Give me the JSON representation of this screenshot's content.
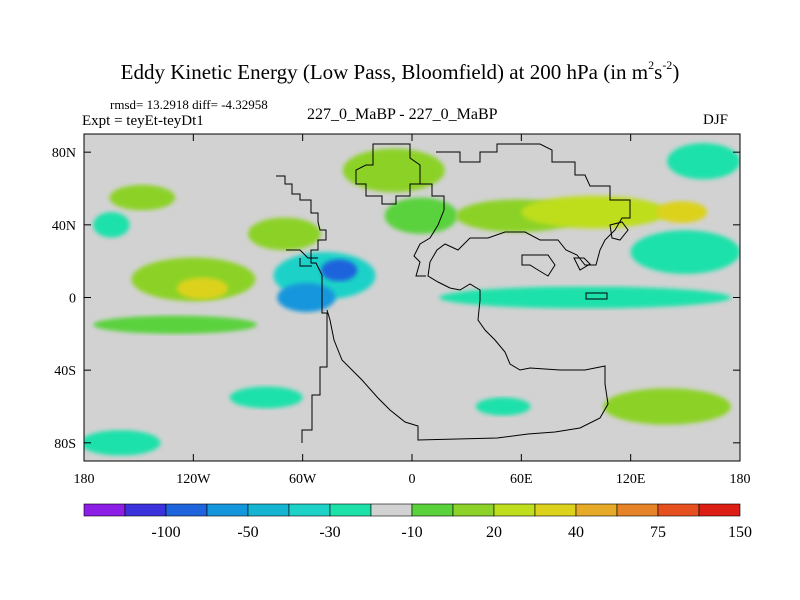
{
  "title": {
    "main": "Eddy Kinetic Energy (Low Pass, Bloomfield) at 200 hPa (in m",
    "sup1": "2",
    "mid": "s",
    "sup2": "-2",
    "close": ")"
  },
  "stats": "rmsd= 13.2918 diff= -4.32958",
  "expt": "Expt = teyEt-teyDt1",
  "runs": "227_0_MaBP - 227_0_MaBP",
  "season": "DJF",
  "chart_data": {
    "type": "heatmap",
    "title": "Eddy Kinetic Energy (Low Pass, Bloomfield) at 200 hPa (in m^2 s^-2)",
    "xlabel": "",
    "ylabel": "",
    "xlim": [
      -180,
      180
    ],
    "ylim": [
      -90,
      90
    ],
    "x_ticks": [
      {
        "value": -180,
        "label": "180"
      },
      {
        "value": -120,
        "label": "120W"
      },
      {
        "value": -60,
        "label": "60W"
      },
      {
        "value": 0,
        "label": "0"
      },
      {
        "value": 60,
        "label": "60E"
      },
      {
        "value": 120,
        "label": "120E"
      },
      {
        "value": 180,
        "label": "180"
      }
    ],
    "y_ticks": [
      {
        "value": 80,
        "label": "80N"
      },
      {
        "value": 40,
        "label": "40N"
      },
      {
        "value": 0,
        "label": "0"
      },
      {
        "value": -40,
        "label": "40S"
      },
      {
        "value": -80,
        "label": "80S"
      }
    ],
    "colorbar": {
      "colors": [
        "#8c1ee6",
        "#3c32dc",
        "#1e64dc",
        "#1496dc",
        "#14b4d2",
        "#1ed2c8",
        "#1ee1aa",
        "#d2d2d2",
        "#5ad23c",
        "#8cd228",
        "#bede1e",
        "#dcd21e",
        "#e6aa28",
        "#e68228",
        "#e6501e",
        "#dc1e14"
      ],
      "labels": [
        {
          "after_index": 1,
          "text": "-100"
        },
        {
          "after_index": 3,
          "text": "-50"
        },
        {
          "after_index": 5,
          "text": "-30"
        },
        {
          "after_index": 7,
          "text": "-10"
        },
        {
          "after_index": 9,
          "text": "20"
        },
        {
          "after_index": 11,
          "text": "40"
        },
        {
          "after_index": 13,
          "text": "75"
        },
        {
          "after_index": 15,
          "text": "150"
        }
      ]
    },
    "blobs": [
      {
        "lon": -48,
        "lat": 12,
        "rlon": 28,
        "rlat": 13,
        "value": -30
      },
      {
        "lon": -58,
        "lat": 0,
        "rlon": 16,
        "rlat": 8,
        "value": -50
      },
      {
        "lon": -40,
        "lat": 15,
        "rlon": 10,
        "rlat": 6,
        "value": -60
      },
      {
        "lon": -120,
        "lat": 10,
        "rlon": 34,
        "rlat": 12,
        "value": 25
      },
      {
        "lon": -115,
        "lat": 5,
        "rlon": 14,
        "rlat": 6,
        "value": 45
      },
      {
        "lon": -70,
        "lat": 35,
        "rlon": 20,
        "rlat": 9,
        "value": 25
      },
      {
        "lon": -148,
        "lat": 55,
        "rlon": 18,
        "rlat": 7,
        "value": 25
      },
      {
        "lon": -165,
        "lat": 40,
        "rlon": 10,
        "rlat": 7,
        "value": -15
      },
      {
        "lon": -10,
        "lat": 70,
        "rlon": 28,
        "rlat": 12,
        "value": 25
      },
      {
        "lon": 5,
        "lat": 45,
        "rlon": 20,
        "rlat": 10,
        "value": 15
      },
      {
        "lon": 58,
        "lat": 45,
        "rlon": 34,
        "rlat": 9,
        "value": 22
      },
      {
        "lon": 100,
        "lat": 47,
        "rlon": 40,
        "rlat": 9,
        "value": 30
      },
      {
        "lon": 148,
        "lat": 47,
        "rlon": 14,
        "rlat": 6,
        "value": 45
      },
      {
        "lon": 160,
        "lat": 75,
        "rlon": 20,
        "rlat": 10,
        "value": -15
      },
      {
        "lon": 150,
        "lat": 25,
        "rlon": 30,
        "rlat": 12,
        "value": -15
      },
      {
        "lon": 95,
        "lat": 0,
        "rlon": 80,
        "rlat": 6,
        "value": -15
      },
      {
        "lon": -130,
        "lat": -15,
        "rlon": 45,
        "rlat": 5,
        "value": 15
      },
      {
        "lon": -160,
        "lat": -80,
        "rlon": 22,
        "rlat": 7,
        "value": -15
      },
      {
        "lon": -80,
        "lat": -55,
        "rlon": 20,
        "rlat": 6,
        "value": -15
      },
      {
        "lon": 140,
        "lat": -60,
        "rlon": 35,
        "rlat": 10,
        "value": 20
      },
      {
        "lon": 50,
        "lat": -60,
        "rlon": 15,
        "rlat": 5,
        "value": -15
      }
    ]
  }
}
